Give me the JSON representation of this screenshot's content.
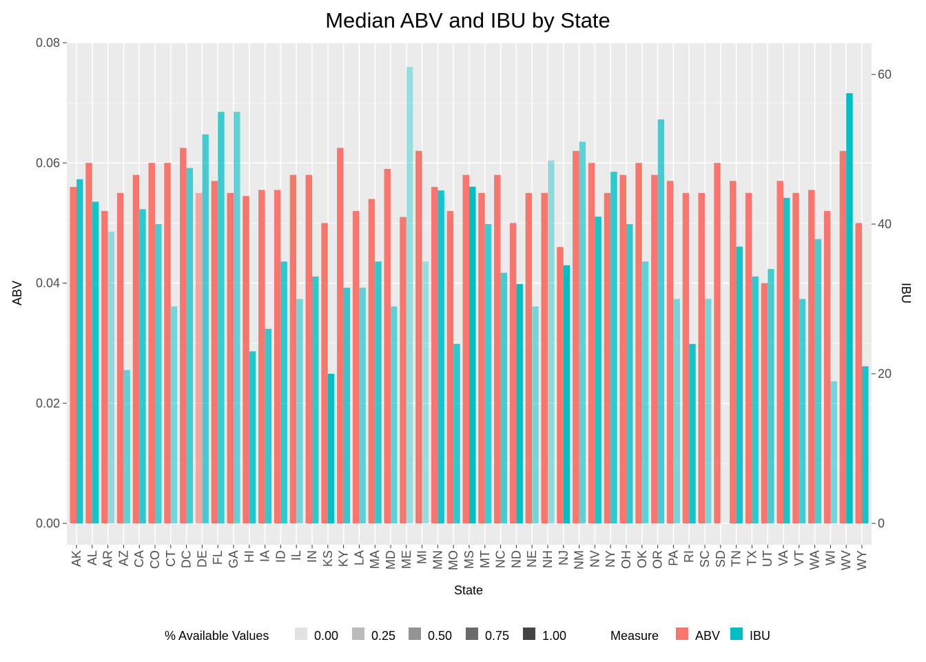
{
  "chart_data": {
    "type": "bar",
    "title": "Median ABV and IBU by State",
    "xlabel": "State",
    "ylabel": "ABV",
    "y2label": "IBU",
    "ylim": [
      0,
      0.08
    ],
    "y2lim": [
      0,
      64.4
    ],
    "y_ticks": [
      "0.00",
      "0.02",
      "0.04",
      "0.06",
      "0.08"
    ],
    "y2_ticks": [
      "0",
      "20",
      "40",
      "60"
    ],
    "grid": true,
    "colors": {
      "ABV": "#F8766D",
      "IBU": "#00BFC4",
      "panel": "#EBEBEB"
    },
    "categories": [
      "AK",
      "AL",
      "AR",
      "AZ",
      "CA",
      "CO",
      "CT",
      "DC",
      "DE",
      "FL",
      "GA",
      "HI",
      "IA",
      "ID",
      "IL",
      "IN",
      "KS",
      "KY",
      "LA",
      "MA",
      "MD",
      "ME",
      "MI",
      "MN",
      "MO",
      "MS",
      "MT",
      "NC",
      "ND",
      "NE",
      "NH",
      "NJ",
      "NM",
      "NV",
      "NY",
      "OH",
      "OK",
      "OR",
      "PA",
      "RI",
      "SC",
      "SD",
      "TN",
      "TX",
      "UT",
      "VA",
      "VT",
      "WA",
      "WI",
      "WV",
      "WY"
    ],
    "series": [
      {
        "name": "ABV",
        "axis": "left",
        "values": [
          0.056,
          0.06,
          0.052,
          0.055,
          0.058,
          0.06,
          0.06,
          0.0625,
          0.055,
          0.057,
          0.055,
          0.0545,
          0.0555,
          0.0555,
          0.058,
          0.058,
          0.05,
          0.0625,
          0.052,
          0.054,
          0.059,
          0.051,
          0.062,
          0.056,
          0.052,
          0.058,
          0.055,
          0.058,
          0.05,
          0.055,
          0.055,
          0.046,
          0.062,
          0.06,
          0.055,
          0.058,
          0.06,
          0.058,
          0.057,
          0.055,
          0.055,
          0.06,
          0.057,
          0.055,
          0.04,
          0.057,
          0.055,
          0.0555,
          0.052,
          0.062,
          0.05
        ],
        "alpha": [
          1,
          1,
          1,
          1,
          1,
          1,
          1,
          1,
          0.6,
          1,
          1,
          1,
          1,
          1,
          1,
          1,
          1,
          1,
          1,
          1,
          1,
          1,
          1,
          1,
          1,
          1,
          1,
          1,
          1,
          1,
          1,
          1,
          1,
          1,
          1,
          1,
          1,
          1,
          1,
          1,
          1,
          1,
          1,
          1,
          1,
          1,
          1,
          1,
          1,
          1,
          1
        ]
      },
      {
        "name": "IBU",
        "axis": "right",
        "values": [
          46,
          43,
          39,
          20.5,
          42,
          40,
          29,
          47.5,
          52,
          55,
          55,
          23,
          26,
          35,
          30,
          33,
          20,
          31.5,
          31.5,
          35,
          29,
          61,
          35,
          44.5,
          24,
          45,
          40,
          33.5,
          32,
          29,
          48.5,
          34.5,
          51,
          41,
          47,
          40,
          35,
          54,
          30,
          24,
          30,
          null,
          37,
          33,
          34,
          43.5,
          30,
          38,
          19,
          57.5,
          21
        ],
        "alpha": [
          0.9,
          0.9,
          0.4,
          0.6,
          0.8,
          0.7,
          0.5,
          0.7,
          0.7,
          0.75,
          0.6,
          0.85,
          0.8,
          0.8,
          0.5,
          0.8,
          1,
          0.8,
          0.6,
          0.8,
          0.6,
          0.35,
          0.35,
          0.9,
          0.8,
          1,
          0.75,
          0.7,
          1,
          0.5,
          0.4,
          1,
          0.6,
          0.9,
          0.8,
          0.8,
          0.6,
          0.7,
          0.5,
          0.9,
          0.5,
          null,
          0.9,
          0.8,
          0.7,
          0.9,
          0.7,
          0.7,
          0.5,
          1,
          0.9
        ]
      }
    ],
    "legend": {
      "position": "bottom",
      "alpha_title": "% Available Values",
      "alpha_levels": [
        "0.00",
        "0.25",
        "0.50",
        "0.75",
        "1.00"
      ],
      "measure_title": "Measure",
      "measure_items": [
        "ABV",
        "IBU"
      ]
    }
  }
}
